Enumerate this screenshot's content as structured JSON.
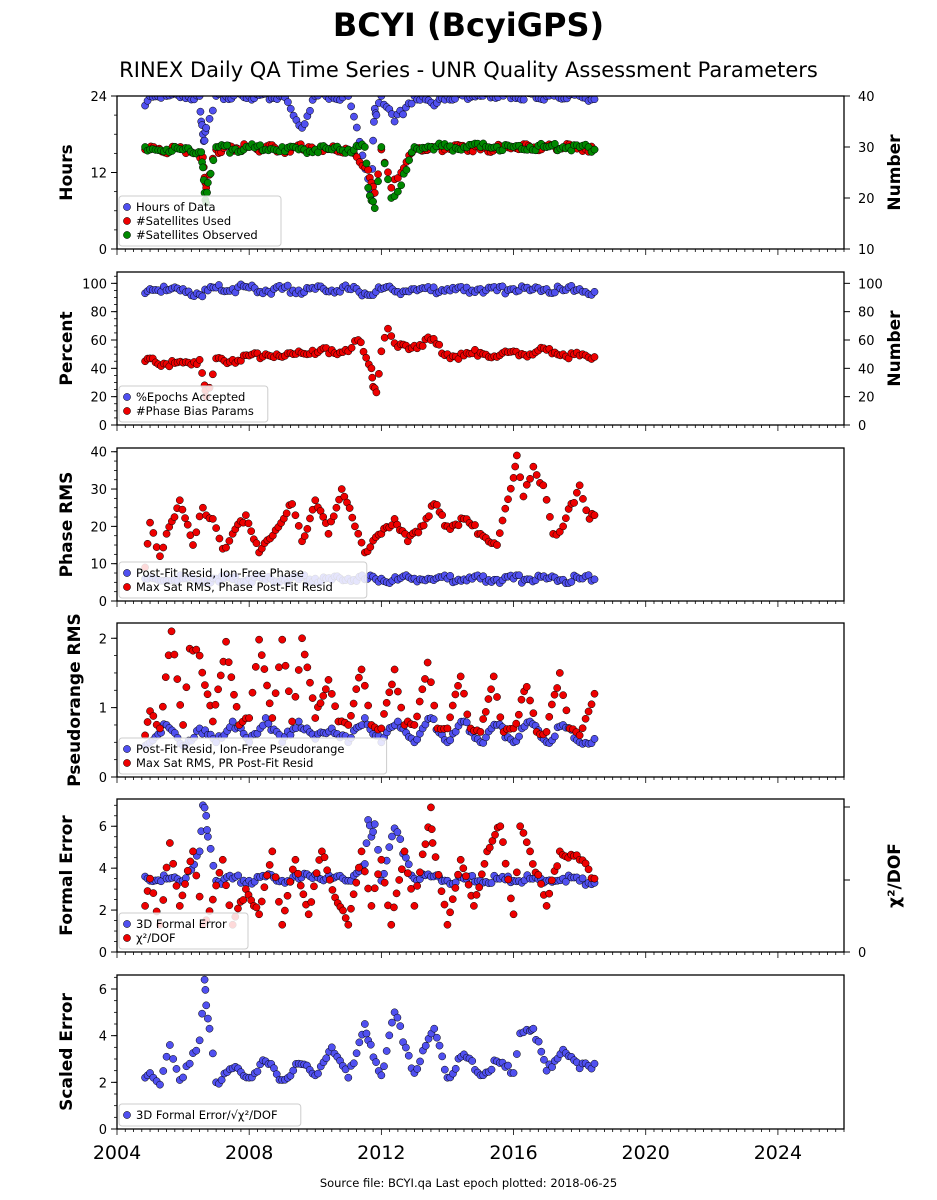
{
  "title": "BCYI (BcyiGPS)",
  "subtitle": "RINEX Daily QA Time Series - UNR Quality Assessment Parameters",
  "footer": "Source file: BCYI.qa Last epoch plotted: 2018-06-25",
  "colors": {
    "blue": "#5050f0",
    "red": "#ee0000",
    "green": "#008800",
    "edge": "#000000"
  },
  "chart_data": [
    {
      "type": "scatter",
      "ylabel": "Hours",
      "ylabel_right": "Number",
      "ylim": [
        0,
        24
      ],
      "yticks": [
        "0",
        "12",
        "24"
      ],
      "ylim_right": [
        10,
        40
      ],
      "yticks_right": [
        "10",
        "20",
        "30",
        "40"
      ],
      "xlim": [
        2004.0,
        2026.0
      ],
      "legend": "lower-left",
      "series": [
        {
          "name": "Hours of Data",
          "color": "blue",
          "x": [
            2004.85,
            2005.0,
            2005.5,
            2006.0,
            2006.5,
            2006.55,
            2006.6,
            2006.65,
            2006.7,
            2007.0,
            2008.0,
            2009.0,
            2009.6,
            2010.0,
            2010.5,
            2011.0,
            2011.6,
            2011.7,
            2011.75,
            2011.8,
            2011.85,
            2012.0,
            2012.4,
            2013.0,
            2013.6,
            2014.0,
            2015.0,
            2016.0,
            2017.0,
            2018.0,
            2018.45
          ],
          "y": [
            22.5,
            24,
            24,
            24,
            24,
            20,
            18,
            17,
            19,
            24,
            24,
            24,
            19,
            24,
            24,
            24,
            11,
            8.5,
            17,
            22,
            21,
            24,
            20,
            24,
            22.5,
            24,
            24,
            24,
            24,
            24,
            23.5
          ]
        },
        {
          "name": "#Satellites Used",
          "color": "red",
          "x": [
            2004.85,
            2005.2,
            2006.0,
            2006.6,
            2006.65,
            2006.7,
            2007.0,
            2008.0,
            2009.0,
            2009.8,
            2010.0,
            2011.0,
            2011.6,
            2011.7,
            2011.8,
            2012.0,
            2012.3,
            2012.6,
            2013.0,
            2014.0,
            2015.0,
            2016.0,
            2017.0,
            2018.0,
            2018.45
          ],
          "y": [
            29.5,
            29.5,
            29.5,
            28,
            24,
            22,
            29.5,
            30,
            29.5,
            30,
            29.5,
            29.5,
            25.5,
            23,
            21,
            29.5,
            22,
            25,
            29.5,
            30,
            29.5,
            30,
            30,
            30,
            29.5
          ]
        },
        {
          "name": "#Satellites Observed",
          "color": "green",
          "x": [
            2004.85,
            2005.0,
            2005.5,
            2006.0,
            2006.55,
            2006.6,
            2006.65,
            2006.7,
            2006.75,
            2007.0,
            2007.5,
            2008.0,
            2008.5,
            2009.0,
            2009.5,
            2010.0,
            2010.5,
            2011.0,
            2011.5,
            2011.6,
            2011.7,
            2011.8,
            2012.0,
            2012.3,
            2012.6,
            2013.0,
            2013.5,
            2014.0,
            2014.5,
            2015.0,
            2015.5,
            2016.0,
            2016.5,
            2017.0,
            2017.5,
            2018.0,
            2018.45
          ],
          "y": [
            30,
            29.5,
            29.5,
            29.5,
            29,
            26,
            21,
            19,
            23,
            30,
            29.5,
            30,
            29.5,
            30,
            29.5,
            29.5,
            29.5,
            29.5,
            30,
            22,
            19.5,
            18,
            30,
            20,
            22.5,
            30,
            30,
            30,
            30,
            30,
            30,
            30,
            30,
            30,
            30,
            30,
            29.5
          ]
        }
      ]
    },
    {
      "type": "scatter",
      "ylabel": "Percent",
      "ylabel_right": "Number",
      "ylim": [
        0,
        108
      ],
      "yticks": [
        "0",
        "20",
        "40",
        "60",
        "80",
        "100"
      ],
      "ylim_right": [
        0,
        108
      ],
      "yticks_right": [
        "0",
        "20",
        "40",
        "60",
        "80",
        "100"
      ],
      "xlim": [
        2004.0,
        2026.0
      ],
      "legend": "lower-left",
      "series": [
        {
          "name": "%Epochs Accepted",
          "color": "blue",
          "x": [
            2004.85,
            2005.0,
            2005.5,
            2006.0,
            2006.5,
            2007.0,
            2007.5,
            2008.0,
            2008.5,
            2009.0,
            2009.5,
            2010.0,
            2010.5,
            2011.0,
            2011.5,
            2012.0,
            2012.5,
            2013.0,
            2013.5,
            2014.0,
            2014.5,
            2015.0,
            2015.5,
            2016.0,
            2016.5,
            2017.0,
            2017.5,
            2018.0,
            2018.45
          ],
          "y": [
            93,
            96,
            95,
            96,
            92,
            97,
            96,
            97,
            95,
            96,
            95,
            96,
            95,
            96,
            93,
            96,
            94,
            96,
            95,
            96,
            95,
            96,
            95,
            96,
            95,
            96,
            95,
            96,
            94
          ]
        },
        {
          "name": "#Phase Bias Params",
          "color": "red",
          "x": [
            2004.85,
            2005.0,
            2005.5,
            2006.0,
            2006.5,
            2006.65,
            2006.7,
            2007.0,
            2007.5,
            2008.0,
            2008.5,
            2009.0,
            2009.5,
            2010.0,
            2010.5,
            2011.0,
            2011.3,
            2011.7,
            2011.75,
            2011.85,
            2012.0,
            2012.2,
            2012.5,
            2013.0,
            2013.5,
            2014.0,
            2014.5,
            2015.0,
            2015.5,
            2016.0,
            2016.5,
            2017.0,
            2017.5,
            2018.0,
            2018.45
          ],
          "y": [
            45,
            47,
            43,
            44,
            46,
            28,
            20,
            47,
            46,
            49,
            50,
            48,
            52,
            50,
            53,
            52,
            60,
            40,
            27,
            23,
            52,
            68,
            55,
            56,
            60,
            50,
            49,
            51,
            48,
            52,
            50,
            53,
            50,
            49,
            48
          ]
        }
      ]
    },
    {
      "type": "scatter",
      "ylabel": "Phase RMS",
      "ylim": [
        0,
        41
      ],
      "yticks": [
        "0",
        "10",
        "20",
        "30",
        "40"
      ],
      "xlim": [
        2004.0,
        2026.0
      ],
      "legend": "lower-left",
      "series": [
        {
          "name": "Post-Fit Resid, Ion-Free Phase",
          "color": "blue",
          "x": [
            2004.85,
            2005.5,
            2006.0,
            2006.5,
            2007.0,
            2007.5,
            2008.0,
            2008.5,
            2009.0,
            2009.5,
            2010.0,
            2010.5,
            2011.0,
            2011.5,
            2012.0,
            2012.5,
            2013.0,
            2013.5,
            2014.0,
            2014.5,
            2015.0,
            2015.5,
            2016.0,
            2016.5,
            2017.0,
            2017.5,
            2018.0,
            2018.45
          ],
          "y": [
            6,
            5.5,
            6,
            5.5,
            6,
            5.8,
            6,
            5.7,
            6,
            5.8,
            6,
            5.7,
            6,
            5.8,
            6,
            5.7,
            6,
            5.9,
            6,
            5.8,
            6,
            5.7,
            6,
            5.8,
            6,
            5.7,
            6,
            5.8
          ]
        },
        {
          "name": "Max Sat RMS, Phase Post-Fit Resid",
          "color": "red",
          "x": [
            2004.85,
            2005.0,
            2005.3,
            2005.5,
            2005.9,
            2006.3,
            2006.6,
            2006.9,
            2007.2,
            2007.5,
            2007.9,
            2008.3,
            2008.8,
            2009.3,
            2009.6,
            2010.0,
            2010.4,
            2010.8,
            2011.2,
            2011.5,
            2012.0,
            2012.4,
            2012.8,
            2013.2,
            2013.6,
            2014.0,
            2014.5,
            2015.0,
            2015.5,
            2016.0,
            2016.1,
            2016.3,
            2016.6,
            2016.9,
            2017.2,
            2017.5,
            2018.0,
            2018.3,
            2018.45
          ],
          "y": [
            9,
            21,
            12,
            18,
            27,
            15,
            25,
            22,
            14,
            18,
            23,
            13,
            19,
            26,
            16,
            27,
            18,
            30,
            20,
            13,
            18,
            22,
            16,
            20,
            26,
            20,
            22,
            18,
            15,
            33,
            39,
            28,
            36,
            31,
            18,
            20,
            31,
            22,
            23
          ]
        }
      ]
    },
    {
      "type": "scatter",
      "ylabel": "Pseudorange RMS",
      "ylim": [
        0,
        2.22
      ],
      "yticks": [
        "0",
        "1",
        "2"
      ],
      "xlim": [
        2004.0,
        2026.0
      ],
      "legend": "lower-left",
      "series": [
        {
          "name": "Post-Fit Resid, Ion-Free Pseudorange",
          "color": "blue",
          "x": [
            2004.85,
            2005.0,
            2005.5,
            2006.0,
            2006.5,
            2007.0,
            2007.5,
            2008.0,
            2008.5,
            2009.0,
            2009.5,
            2010.0,
            2010.5,
            2011.0,
            2011.5,
            2012.0,
            2012.5,
            2013.0,
            2013.5,
            2014.0,
            2014.5,
            2015.0,
            2015.5,
            2016.0,
            2016.5,
            2017.0,
            2017.5,
            2018.0,
            2018.45
          ],
          "y": [
            0.45,
            0.5,
            0.75,
            0.45,
            0.7,
            0.5,
            0.8,
            0.5,
            0.85,
            0.5,
            0.8,
            0.55,
            0.7,
            0.5,
            0.85,
            0.5,
            0.8,
            0.5,
            0.85,
            0.5,
            0.8,
            0.5,
            0.75,
            0.5,
            0.8,
            0.5,
            0.75,
            0.5,
            0.55
          ]
        },
        {
          "name": "Max Sat RMS, PR Post-Fit Resid",
          "color": "red",
          "x": [
            2004.85,
            2005.0,
            2005.3,
            2005.65,
            2006.0,
            2006.2,
            2006.5,
            2006.9,
            2007.3,
            2007.7,
            2008.0,
            2008.3,
            2008.7,
            2009.0,
            2009.3,
            2009.6,
            2010.0,
            2010.4,
            2010.7,
            2011.0,
            2011.4,
            2011.7,
            2012.0,
            2012.4,
            2012.7,
            2013.0,
            2013.4,
            2013.7,
            2014.0,
            2014.4,
            2014.7,
            2015.0,
            2015.4,
            2015.7,
            2016.0,
            2016.4,
            2016.7,
            2017.0,
            2017.4,
            2017.7,
            2018.0,
            2018.45
          ],
          "y": [
            0.6,
            0.95,
            0.7,
            2.1,
            0.75,
            1.85,
            1.75,
            0.8,
            1.95,
            0.75,
            0.85,
            1.98,
            0.85,
            1.98,
            0.8,
            2.0,
            0.85,
            1.4,
            0.8,
            0.75,
            1.55,
            0.75,
            0.7,
            1.55,
            0.75,
            0.75,
            1.65,
            0.7,
            0.7,
            1.45,
            0.7,
            0.65,
            1.45,
            0.65,
            0.7,
            1.3,
            0.65,
            0.65,
            1.5,
            0.7,
            0.6,
            1.2
          ]
        }
      ]
    },
    {
      "type": "scatter",
      "ylabel": "Formal Error",
      "ylabel_right": "χ²/DOF",
      "ylim": [
        0,
        7.3
      ],
      "yticks": [
        "0",
        "2",
        "4",
        "6"
      ],
      "yticks_right": [
        "0"
      ],
      "xlim": [
        2004.0,
        2026.0
      ],
      "legend": "lower-left",
      "series": [
        {
          "name": "3D Formal Error",
          "color": "blue",
          "x": [
            2004.85,
            2005.0,
            2005.5,
            2006.0,
            2006.5,
            2006.6,
            2006.7,
            2006.75,
            2007.0,
            2007.5,
            2008.0,
            2008.5,
            2009.0,
            2009.5,
            2010.0,
            2010.5,
            2011.0,
            2011.5,
            2011.6,
            2011.7,
            2011.8,
            2012.0,
            2012.4,
            2013.0,
            2013.5,
            2014.0,
            2014.5,
            2015.0,
            2015.5,
            2016.0,
            2016.5,
            2017.0,
            2017.5,
            2018.0,
            2018.45
          ],
          "y": [
            3.6,
            3.4,
            3.5,
            3.4,
            4.8,
            7.0,
            6.5,
            5.5,
            3.4,
            3.5,
            3.4,
            3.6,
            3.4,
            3.5,
            3.7,
            3.5,
            3.4,
            4.2,
            6.3,
            5.5,
            6.1,
            3.4,
            5.9,
            3.5,
            3.6,
            3.4,
            3.5,
            3.4,
            3.5,
            3.4,
            3.5,
            3.4,
            3.5,
            3.4,
            3.3
          ]
        },
        {
          "name": "χ²/DOF",
          "color": "red",
          "x": [
            2004.85,
            2005.0,
            2005.3,
            2005.6,
            2005.9,
            2006.3,
            2006.6,
            2006.9,
            2007.2,
            2007.5,
            2007.9,
            2008.3,
            2008.7,
            2009.0,
            2009.4,
            2009.8,
            2010.2,
            2010.6,
            2011.0,
            2011.4,
            2011.7,
            2012.0,
            2012.3,
            2012.7,
            2013.0,
            2013.5,
            2013.55,
            2014.0,
            2014.4,
            2014.8,
            2015.2,
            2015.6,
            2016.0,
            2016.2,
            2016.5,
            2017.0,
            2017.4,
            2018.0,
            2018.45
          ],
          "y": [
            2.2,
            3.5,
            1.3,
            5.2,
            2.2,
            4.8,
            1.3,
            2.5,
            4.4,
            1.3,
            3.0,
            1.8,
            4.8,
            1.3,
            4.4,
            1.8,
            4.8,
            2.6,
            1.3,
            4.8,
            2.2,
            4.4,
            1.3,
            4.8,
            2.2,
            6.9,
            5.2,
            1.3,
            4.4,
            2.2,
            4.8,
            6.0,
            1.8,
            6.0,
            4.8,
            2.2,
            4.8,
            4.4,
            3.5
          ]
        }
      ]
    },
    {
      "type": "scatter",
      "ylabel": "Scaled Error",
      "ylim": [
        0,
        6.6
      ],
      "yticks": [
        "0",
        "2",
        "4",
        "6"
      ],
      "xlim": [
        2004.0,
        2026.0
      ],
      "xticks": [
        "2004",
        "2008",
        "2012",
        "2016",
        "2020",
        "2024"
      ],
      "legend": "lower-left",
      "series": [
        {
          "name": "3D Formal Error/√χ²/DOF",
          "color": "blue",
          "x": [
            2004.85,
            2005.0,
            2005.3,
            2005.6,
            2005.9,
            2006.2,
            2006.5,
            2006.65,
            2006.7,
            2006.8,
            2007.0,
            2007.5,
            2008.0,
            2008.5,
            2009.0,
            2009.5,
            2010.0,
            2010.5,
            2011.0,
            2011.5,
            2011.6,
            2012.0,
            2012.4,
            2013.0,
            2013.6,
            2014.0,
            2014.5,
            2015.0,
            2015.5,
            2016.0,
            2016.2,
            2016.5,
            2016.6,
            2017.0,
            2017.5,
            2018.0,
            2018.45
          ],
          "y": [
            2.2,
            2.4,
            1.9,
            3.6,
            2.1,
            2.8,
            3.8,
            6.4,
            5.3,
            4.3,
            2.0,
            2.6,
            2.2,
            2.9,
            2.1,
            2.8,
            2.3,
            3.5,
            2.2,
            4.5,
            3.8,
            2.3,
            5.0,
            2.4,
            4.3,
            2.2,
            3.2,
            2.3,
            2.9,
            2.4,
            4.1,
            4.2,
            4.3,
            2.5,
            3.4,
            2.6,
            2.8
          ]
        }
      ]
    }
  ]
}
